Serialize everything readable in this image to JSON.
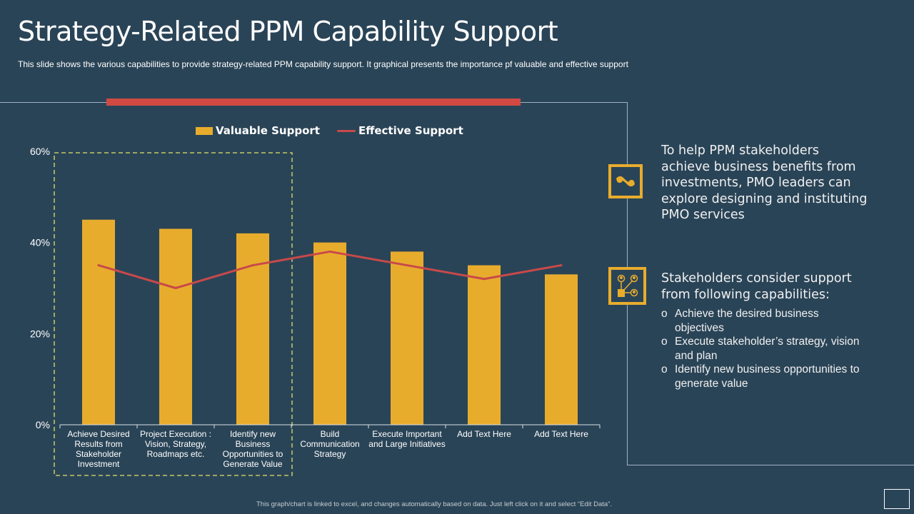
{
  "header": {
    "title": "Strategy-Related PPM Capability Support",
    "subtitle": "This slide shows the various  capabilities to provide  strategy-related PPM capability support. It graphical presents the importance pf valuable  and effective  support"
  },
  "colors": {
    "background": "#2a4457",
    "bar": "#e8ac2d",
    "line": "#c8494a",
    "accent_red": "#d04a43",
    "highlight_box": "#e0e06a"
  },
  "chart_data": {
    "type": "bar",
    "title": "",
    "xlabel": "",
    "ylabel": "",
    "ylim": [
      0,
      60
    ],
    "y_ticks": [
      "0%",
      "20%",
      "40%",
      "60%"
    ],
    "y_tick_values": [
      0,
      20,
      40,
      60
    ],
    "grid": false,
    "legend_position": "top-center",
    "categories": [
      "Achieve Desired Results from Stakeholder Investment",
      "Project Execution : Vision, Strategy, Roadmaps etc.",
      "Identify new Business Opportunities to Generate Value",
      "Build Communication Strategy",
      "Execute Important and Large Initiatives",
      "Add Text Here",
      "Add Text Here"
    ],
    "category_lines": [
      [
        "Achieve Desired",
        "Results from",
        "Stakeholder",
        "Investment"
      ],
      [
        "Project Execution :",
        "Vision, Strategy,",
        "Roadmaps etc."
      ],
      [
        "Identify new",
        "Business",
        "Opportunities to",
        "Generate Value"
      ],
      [
        "Build",
        "Communication",
        "Strategy"
      ],
      [
        "Execute Important",
        "and Large Initiatives"
      ],
      [
        "Add Text Here"
      ],
      [
        "Add Text Here"
      ]
    ],
    "series": [
      {
        "name": "Valuable Support",
        "type": "bar",
        "values": [
          45,
          43,
          42,
          40,
          38,
          35,
          33
        ]
      },
      {
        "name": "Effective Support",
        "type": "line",
        "values": [
          35,
          30,
          35,
          38,
          35,
          32,
          35
        ]
      }
    ],
    "highlighted_categories": [
      0,
      1,
      2
    ]
  },
  "side_panel": {
    "block1_icon": "handshake-icon",
    "block1_text_lines": [
      "To help PPM stakeholders",
      "achieve business benefits from",
      "investments, PMO leaders can",
      "explore designing and instituting",
      "PMO services"
    ],
    "block2_icon": "stakeholder-network-icon",
    "block2_text_lines": [
      "Stakeholders consider support",
      "from following capabilities:"
    ],
    "bullet_marker": "o",
    "bullets": [
      [
        "Achieve the desired business",
        "objectives"
      ],
      [
        "Execute stakeholder’s strategy, vision",
        "and plan"
      ],
      [
        "Identify  new business opportunities to",
        "generate value"
      ]
    ]
  },
  "footer": {
    "note": "This graph/chart is linked to excel, and changes automatically based on data. Just left click on it and select “Edit Data”."
  }
}
